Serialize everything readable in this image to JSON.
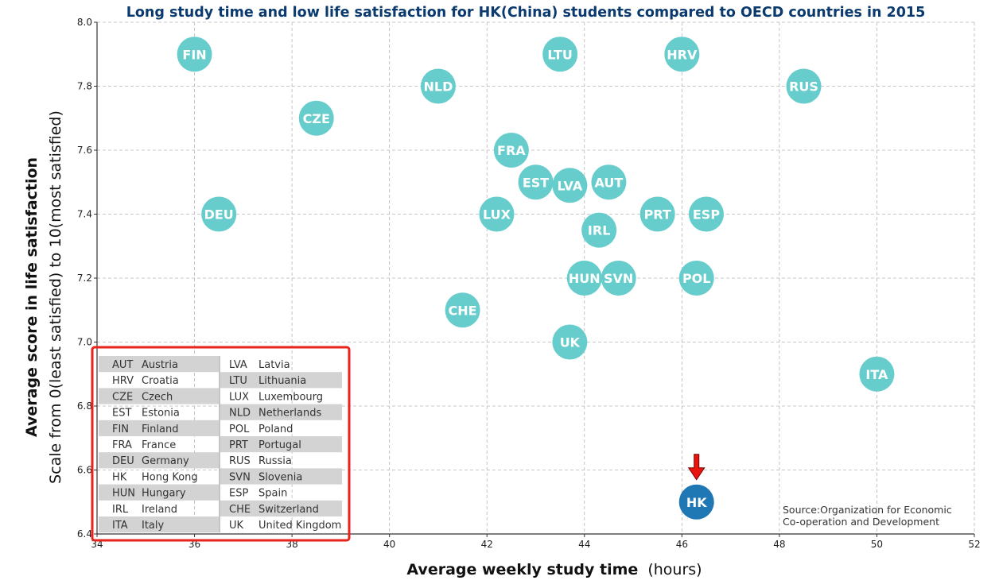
{
  "chart_data": {
    "type": "scatter",
    "title": "Long study time and low life satisfaction for HK(China) students compared to OECD countries in 2015",
    "xlabel_bold": "Average weekly study time",
    "xlabel_unit": "(hours)",
    "ylabel_bold": "Average score in life satisfaction",
    "ylabel_sub": "Scale from 0(least satisfied) to 10(most satisfied)",
    "xlim": [
      34,
      52
    ],
    "ylim": [
      6.4,
      8.0
    ],
    "xticks": [
      34,
      36,
      38,
      40,
      42,
      44,
      46,
      48,
      50,
      52
    ],
    "yticks": [
      6.4,
      6.6,
      6.8,
      7.0,
      7.2,
      7.4,
      7.6,
      7.8,
      8.0
    ],
    "grid": true,
    "colors": {
      "oecd": "#66CDCC",
      "highlight": "#1F77B4",
      "arrow": "#E8140E",
      "legend_box": "#E8231C",
      "title": "#0B3A6E"
    },
    "points": [
      {
        "code": "FIN",
        "x": 36.0,
        "y": 7.9
      },
      {
        "code": "LTU",
        "x": 43.5,
        "y": 7.9
      },
      {
        "code": "HRV",
        "x": 46.0,
        "y": 7.9
      },
      {
        "code": "NLD",
        "x": 41.0,
        "y": 7.8
      },
      {
        "code": "RUS",
        "x": 48.5,
        "y": 7.8
      },
      {
        "code": "CZE",
        "x": 38.5,
        "y": 7.7
      },
      {
        "code": "FRA",
        "x": 42.5,
        "y": 7.6
      },
      {
        "code": "EST",
        "x": 43.0,
        "y": 7.5
      },
      {
        "code": "LVA",
        "x": 43.7,
        "y": 7.49
      },
      {
        "code": "AUT",
        "x": 44.5,
        "y": 7.5
      },
      {
        "code": "DEU",
        "x": 36.5,
        "y": 7.4
      },
      {
        "code": "LUX",
        "x": 42.2,
        "y": 7.4
      },
      {
        "code": "PRT",
        "x": 45.5,
        "y": 7.4
      },
      {
        "code": "ESP",
        "x": 46.5,
        "y": 7.4
      },
      {
        "code": "IRL",
        "x": 44.3,
        "y": 7.35
      },
      {
        "code": "HUN",
        "x": 44.0,
        "y": 7.2
      },
      {
        "code": "SVN",
        "x": 44.7,
        "y": 7.2
      },
      {
        "code": "POL",
        "x": 46.3,
        "y": 7.2
      },
      {
        "code": "CHE",
        "x": 41.5,
        "y": 7.1
      },
      {
        "code": "UK",
        "x": 43.7,
        "y": 7.0
      },
      {
        "code": "ITA",
        "x": 50.0,
        "y": 6.9
      },
      {
        "code": "HK",
        "x": 46.3,
        "y": 6.5,
        "highlight": true
      }
    ],
    "legend": {
      "left": [
        [
          "AUT",
          "Austria"
        ],
        [
          "HRV",
          "Croatia"
        ],
        [
          "CZE",
          "Czech"
        ],
        [
          "EST",
          "Estonia"
        ],
        [
          "FIN",
          "Finland"
        ],
        [
          "FRA",
          "France"
        ],
        [
          "DEU",
          "Germany"
        ],
        [
          "HK",
          "Hong Kong"
        ],
        [
          "HUN",
          "Hungary"
        ],
        [
          "IRL",
          "Ireland"
        ],
        [
          "ITA",
          "Italy"
        ]
      ],
      "right": [
        [
          "LVA",
          "Latvia"
        ],
        [
          "LTU",
          "Lithuania"
        ],
        [
          "LUX",
          "Luxembourg"
        ],
        [
          "NLD",
          "Netherlands"
        ],
        [
          "POL",
          "Poland"
        ],
        [
          "PRT",
          "Portugal"
        ],
        [
          "RUS",
          "Russia"
        ],
        [
          "SVN",
          "Slovenia"
        ],
        [
          "ESP",
          "Spain"
        ],
        [
          "CHE",
          "Switzerland"
        ],
        [
          "UK",
          "United Kingdom"
        ]
      ]
    },
    "source_lines": [
      "Source:Organization for Economic",
      "Co-operation and Development"
    ]
  }
}
